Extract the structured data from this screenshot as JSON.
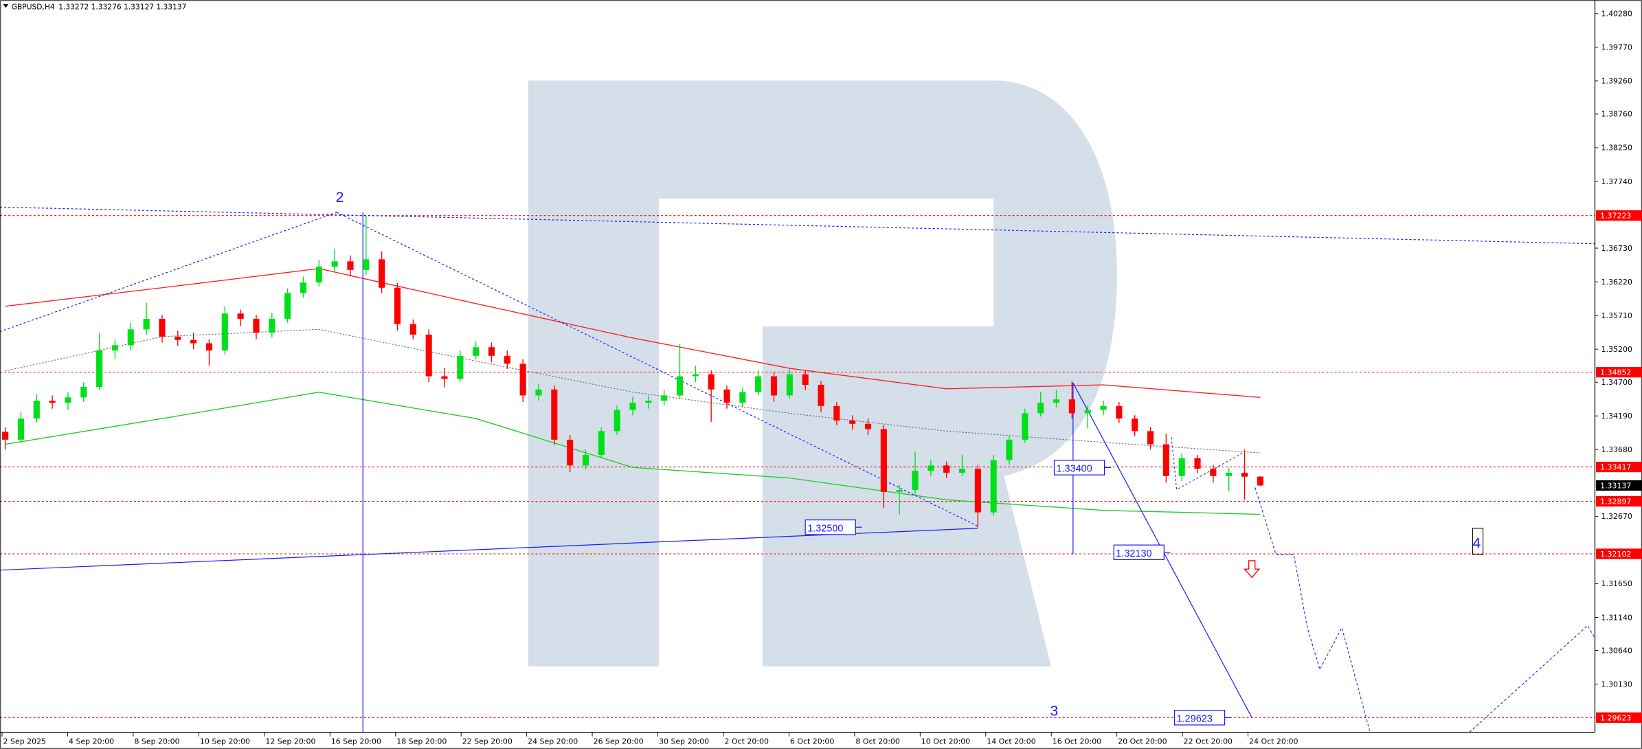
{
  "header": {
    "symbol": "GBPUSD,H4",
    "ohlc_text": "1.33272 1.33276 1.33127 1.33137"
  },
  "chart_data": {
    "type": "candlestick",
    "title": "GBPUSD,H4",
    "bar_ohlc": {
      "open": 1.33272,
      "high": 1.33276,
      "low": 1.33127,
      "close": 1.33137
    },
    "ylim": [
      1.2955,
      1.404
    ],
    "grid": false,
    "colors": {
      "bull": "#00e01a",
      "bear": "#ff0000",
      "ma_red": "#ff2020",
      "ma_green": "#22cc22",
      "ma_gray": "#666666",
      "wave": "#1a1aff",
      "level": "#ff0000",
      "watermark": "#d4dfea"
    },
    "y_ticks": [
      "1.40280",
      "1.39770",
      "1.39260",
      "1.38760",
      "1.38250",
      "1.37740",
      "1.36730",
      "1.36220",
      "1.35710",
      "1.35200",
      "1.34700",
      "1.34190",
      "1.33680",
      "1.32670",
      "1.31650",
      "1.31140",
      "1.30640",
      "1.30130"
    ],
    "x_ticks": [
      "2 Sep 2025",
      "4 Sep 20:00",
      "8 Sep 20:00",
      "10 Sep 20:00",
      "12 Sep 20:00",
      "16 Sep 20:00",
      "18 Sep 20:00",
      "22 Sep 20:00",
      "24 Sep 20:00",
      "26 Sep 20:00",
      "30 Sep 20:00",
      "2 Oct 20:00",
      "6 Oct 20:00",
      "8 Oct 20:00",
      "10 Oct 20:00",
      "14 Oct 20:00",
      "16 Oct 20:00",
      "20 Oct 20:00",
      "22 Oct 20:00",
      "24 Oct 20:00"
    ],
    "levels": [
      "1.37223",
      "1.34852",
      "1.33417",
      "1.32897",
      "1.32102",
      "1.29623"
    ],
    "current_price": "1.33137",
    "annotations": {
      "box_1": "1.33400",
      "box_2": "1.32500",
      "box_3": "1.32130",
      "box_4": "1.29623",
      "wave_2": "2",
      "wave_3": "3",
      "wave_4": "4",
      "arrow": "down"
    },
    "ma_red": [
      1.3585,
      1.3613,
      1.3642,
      1.3589,
      1.3537,
      1.3491,
      1.346,
      1.3466,
      1.3447
    ],
    "ma_gray": [
      1.3487,
      1.3539,
      1.355,
      1.3502,
      1.3455,
      1.3423,
      1.3396,
      1.3379,
      1.3363
    ],
    "ma_green": [
      1.3376,
      1.3415,
      1.3455,
      1.3415,
      1.3341,
      1.3325,
      1.3292,
      1.3276,
      1.327
    ],
    "candles": [
      [
        1.3395,
        1.3402,
        1.3368,
        1.3383
      ],
      [
        1.3383,
        1.3425,
        1.3378,
        1.3415
      ],
      [
        1.3415,
        1.3452,
        1.3408,
        1.3442
      ],
      [
        1.3442,
        1.345,
        1.343,
        1.3439
      ],
      [
        1.3439,
        1.3455,
        1.3428,
        1.3447
      ],
      [
        1.3447,
        1.347,
        1.344,
        1.3463
      ],
      [
        1.3463,
        1.3545,
        1.3458,
        1.3518
      ],
      [
        1.3518,
        1.3535,
        1.3505,
        1.3526
      ],
      [
        1.3526,
        1.356,
        1.3518,
        1.355
      ],
      [
        1.355,
        1.359,
        1.3542,
        1.3566
      ],
      [
        1.3566,
        1.3572,
        1.353,
        1.3539
      ],
      [
        1.3539,
        1.3548,
        1.3525,
        1.3534
      ],
      [
        1.3534,
        1.3545,
        1.352,
        1.3529
      ],
      [
        1.3529,
        1.3535,
        1.3495,
        1.3518
      ],
      [
        1.3518,
        1.3585,
        1.3512,
        1.3574
      ],
      [
        1.3574,
        1.358,
        1.3555,
        1.3566
      ],
      [
        1.3566,
        1.3572,
        1.3535,
        1.3545
      ],
      [
        1.3545,
        1.3575,
        1.3538,
        1.3566
      ],
      [
        1.3566,
        1.3612,
        1.356,
        1.3605
      ],
      [
        1.3605,
        1.363,
        1.3598,
        1.3621
      ],
      [
        1.3621,
        1.3655,
        1.3615,
        1.3645
      ],
      [
        1.3645,
        1.3672,
        1.3638,
        1.3653
      ],
      [
        1.3653,
        1.3662,
        1.363,
        1.364
      ],
      [
        1.364,
        1.3722,
        1.3632,
        1.3656
      ],
      [
        1.3656,
        1.3668,
        1.3605,
        1.3613
      ],
      [
        1.3613,
        1.362,
        1.3548,
        1.3558
      ],
      [
        1.3558,
        1.3565,
        1.3535,
        1.3542
      ],
      [
        1.3542,
        1.355,
        1.347,
        1.3479
      ],
      [
        1.3479,
        1.3492,
        1.3462,
        1.3475
      ],
      [
        1.3475,
        1.3518,
        1.347,
        1.351
      ],
      [
        1.351,
        1.3532,
        1.3505,
        1.3523
      ],
      [
        1.3523,
        1.353,
        1.35,
        1.351
      ],
      [
        1.351,
        1.3518,
        1.349,
        1.3498
      ],
      [
        1.3498,
        1.3505,
        1.344,
        1.345
      ],
      [
        1.345,
        1.3468,
        1.3442,
        1.3459
      ],
      [
        1.3459,
        1.3465,
        1.3375,
        1.3383
      ],
      [
        1.3383,
        1.339,
        1.3334,
        1.3344
      ],
      [
        1.3344,
        1.3368,
        1.3338,
        1.336
      ],
      [
        1.336,
        1.3402,
        1.3355,
        1.3396
      ],
      [
        1.3396,
        1.3435,
        1.339,
        1.3428
      ],
      [
        1.3428,
        1.3448,
        1.342,
        1.3439
      ],
      [
        1.3439,
        1.345,
        1.343,
        1.3442
      ],
      [
        1.3442,
        1.3458,
        1.3435,
        1.345
      ],
      [
        1.345,
        1.3528,
        1.3445,
        1.3479
      ],
      [
        1.3479,
        1.3495,
        1.347,
        1.3482
      ],
      [
        1.3482,
        1.3488,
        1.341,
        1.3459
      ],
      [
        1.3459,
        1.3465,
        1.343,
        1.3439
      ],
      [
        1.3439,
        1.3462,
        1.3432,
        1.3455
      ],
      [
        1.3455,
        1.3488,
        1.345,
        1.3479
      ],
      [
        1.3479,
        1.3485,
        1.344,
        1.345
      ],
      [
        1.345,
        1.349,
        1.3445,
        1.3482
      ],
      [
        1.3482,
        1.3488,
        1.3458,
        1.3466
      ],
      [
        1.3466,
        1.3472,
        1.3425,
        1.3434
      ],
      [
        1.3434,
        1.344,
        1.3405,
        1.3412
      ],
      [
        1.3412,
        1.342,
        1.3398,
        1.3407
      ],
      [
        1.3407,
        1.3415,
        1.339,
        1.3399
      ],
      [
        1.3399,
        1.3405,
        1.328,
        1.3304
      ],
      [
        1.3304,
        1.3315,
        1.327,
        1.3307
      ],
      [
        1.3307,
        1.3365,
        1.33,
        1.3336
      ],
      [
        1.3336,
        1.3352,
        1.3328,
        1.3344
      ],
      [
        1.3344,
        1.335,
        1.3325,
        1.3333
      ],
      [
        1.3333,
        1.336,
        1.3328,
        1.3339
      ],
      [
        1.3339,
        1.3345,
        1.325,
        1.3273
      ],
      [
        1.3273,
        1.336,
        1.3268,
        1.3352
      ],
      [
        1.3352,
        1.339,
        1.3345,
        1.3383
      ],
      [
        1.3383,
        1.343,
        1.3378,
        1.3423
      ],
      [
        1.3423,
        1.3455,
        1.3418,
        1.3439
      ],
      [
        1.3439,
        1.3458,
        1.3432,
        1.3444
      ],
      [
        1.3444,
        1.3472,
        1.3415,
        1.3423
      ],
      [
        1.3423,
        1.3435,
        1.34,
        1.3428
      ],
      [
        1.3428,
        1.3442,
        1.342,
        1.3434
      ],
      [
        1.3434,
        1.344,
        1.3408,
        1.3415
      ],
      [
        1.3415,
        1.342,
        1.3388,
        1.3396
      ],
      [
        1.3396,
        1.3402,
        1.3368,
        1.3376
      ],
      [
        1.3376,
        1.3392,
        1.3318,
        1.3328
      ],
      [
        1.3328,
        1.3362,
        1.332,
        1.3355
      ],
      [
        1.3355,
        1.336,
        1.3332,
        1.3339
      ],
      [
        1.3339,
        1.3345,
        1.3318,
        1.3328
      ],
      [
        1.3328,
        1.334,
        1.3305,
        1.3333
      ],
      [
        1.3333,
        1.3368,
        1.3292,
        1.3327
      ],
      [
        1.33272,
        1.33276,
        1.33127,
        1.33137
      ]
    ]
  }
}
